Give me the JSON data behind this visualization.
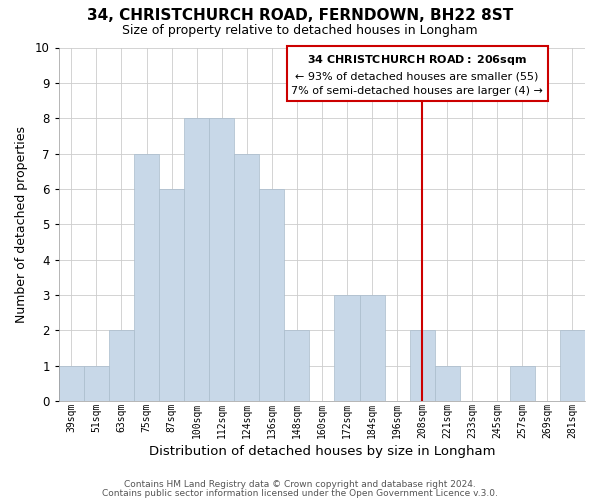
{
  "title": "34, CHRISTCHURCH ROAD, FERNDOWN, BH22 8ST",
  "subtitle": "Size of property relative to detached houses in Longham",
  "xlabel": "Distribution of detached houses by size in Longham",
  "ylabel": "Number of detached properties",
  "bar_labels": [
    "39sqm",
    "51sqm",
    "63sqm",
    "75sqm",
    "87sqm",
    "100sqm",
    "112sqm",
    "124sqm",
    "136sqm",
    "148sqm",
    "160sqm",
    "172sqm",
    "184sqm",
    "196sqm",
    "208sqm",
    "221sqm",
    "233sqm",
    "245sqm",
    "257sqm",
    "269sqm",
    "281sqm"
  ],
  "bar_values": [
    1,
    1,
    2,
    7,
    6,
    8,
    8,
    7,
    6,
    2,
    0,
    3,
    3,
    0,
    2,
    1,
    0,
    0,
    1,
    0,
    2
  ],
  "bar_color": "#c8d8e8",
  "bar_edgecolor": "#aabccc",
  "vline_color": "#cc0000",
  "ylim": [
    0,
    10
  ],
  "yticks": [
    0,
    1,
    2,
    3,
    4,
    5,
    6,
    7,
    8,
    9,
    10
  ],
  "annotation_title": "34 CHRISTCHURCH ROAD: 206sqm",
  "annotation_line1": "← 93% of detached houses are smaller (55)",
  "annotation_line2": "7% of semi-detached houses are larger (4) →",
  "annotation_box_color": "#ffffff",
  "annotation_border_color": "#cc0000",
  "footer1": "Contains HM Land Registry data © Crown copyright and database right 2024.",
  "footer2": "Contains public sector information licensed under the Open Government Licence v.3.0.",
  "grid_color": "#cccccc",
  "background_color": "#ffffff"
}
